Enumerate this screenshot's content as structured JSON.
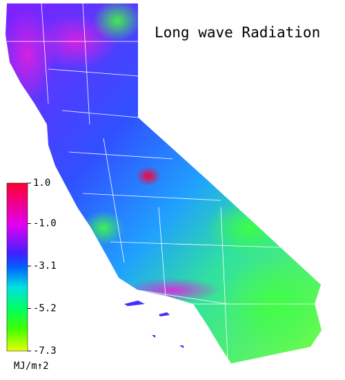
{
  "title": "Long wave Radiation",
  "legend": {
    "range": [
      -7.3,
      1
    ],
    "ticks": [
      {
        "value": 1,
        "label": "1.0"
      },
      {
        "value": -1,
        "label": "-1.0"
      },
      -3.1,
      -5.2,
      -7.3
    ],
    "unit": "MJ/m↑2"
  }
}
